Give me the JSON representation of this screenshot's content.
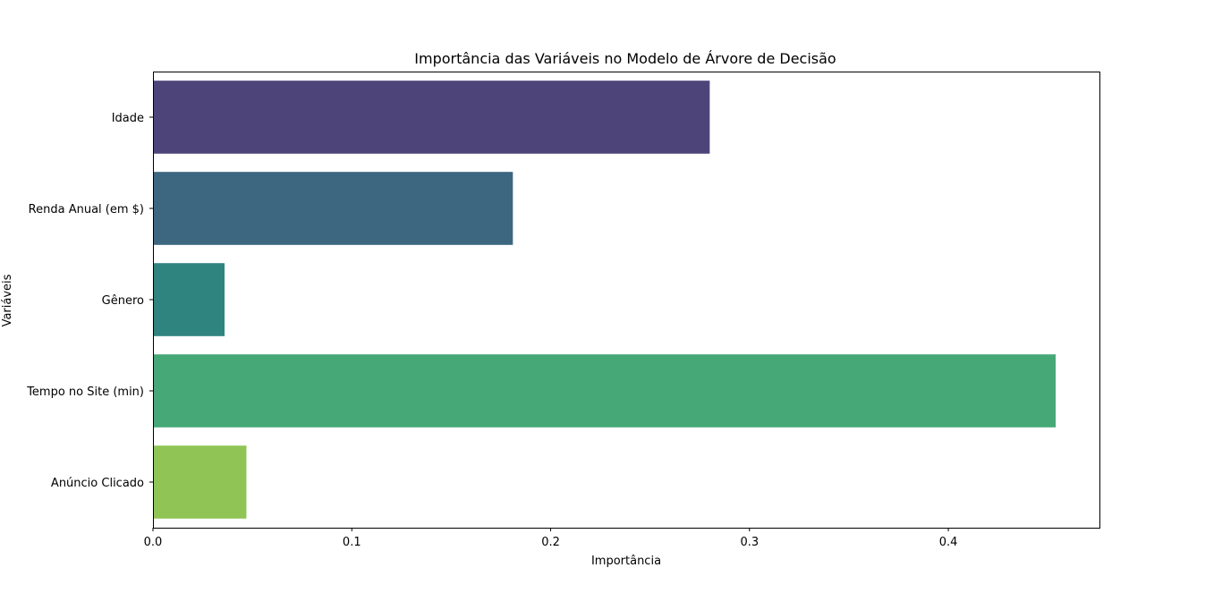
{
  "chart_data": {
    "type": "bar",
    "orientation": "horizontal",
    "title": "Importância das Variáveis no Modelo de Árvore de Decisão",
    "xlabel": "Importância",
    "ylabel": "Variáveis",
    "categories": [
      "Idade",
      "Renda Anual (em $)",
      "Gênero",
      "Tempo no Site (min)",
      "Anúncio Clicado"
    ],
    "values": [
      0.28,
      0.181,
      0.036,
      0.454,
      0.047
    ],
    "colors": [
      "#4d4579",
      "#3d6680",
      "#2f8480",
      "#46a877",
      "#90c556"
    ],
    "xlim": [
      0,
      0.476
    ],
    "xticks": [
      0.0,
      0.1,
      0.2,
      0.3,
      0.4
    ],
    "xtick_labels": [
      "0.0",
      "0.1",
      "0.2",
      "0.3",
      "0.4"
    ],
    "grid": false,
    "legend": "none"
  }
}
